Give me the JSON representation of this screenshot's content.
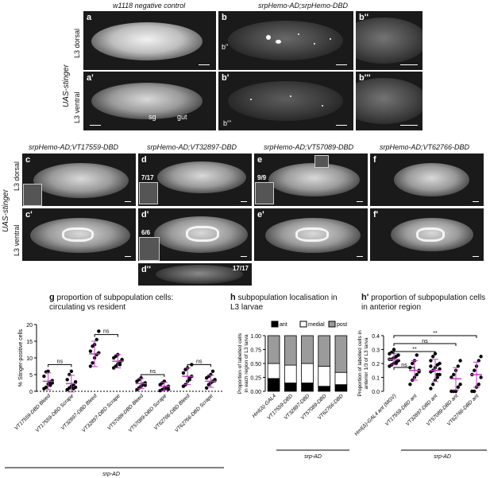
{
  "top": {
    "col_headers": [
      "w1118 negative control",
      "srpHemo-AD;srpHemo-DBD"
    ],
    "side_label": "UAS-stinger",
    "row_labels": [
      "L3 dorsal",
      "L3 ventral"
    ],
    "panel_labels": [
      "a",
      "b",
      "b''",
      "a'",
      "b'",
      "b'''"
    ],
    "annotations": {
      "sg": "sg",
      "gut": "gut",
      "b2": "b''",
      "b3": "b'''"
    }
  },
  "middle": {
    "col_headers": [
      "srpHemo-AD;VT17559-DBD",
      "srpHemo-AD;VT32897-DBD",
      "srpHemo-AD;VT57089-DBD",
      "srpHemo-AD;VT62766-DBD"
    ],
    "side_label": "UAS-stinger",
    "row_labels": [
      "L3 dorsal",
      "L3 ventral"
    ],
    "panel_labels": [
      "c",
      "d",
      "e",
      "f",
      "c'",
      "d'",
      "e'",
      "f'",
      "d''"
    ],
    "counts": [
      "7/17",
      "9/9",
      "6/6",
      "17/17"
    ]
  },
  "g": {
    "label": "g",
    "title": "proportion of subpopulation cells: circulating vs resident",
    "ylabel": "% Stinger-positive cells",
    "xgroup": "srp-AD",
    "ns": "ns"
  },
  "h": {
    "label": "h",
    "title": "subpopulation localisation in L3 larvae",
    "ylabel": "Proportion of labelled cells in each region of L3 larva",
    "xgroup": "srp-AD",
    "legend": [
      "ant",
      "medial",
      "post"
    ]
  },
  "h2": {
    "label": "h'",
    "title": "proportion of subpopulation cells in anterior region",
    "ylabel": "Proportion of labelled cells in anterior 1/3 of L3 larva",
    "xgroup": "srp-AD",
    "sig": [
      "ns",
      "**",
      "ns",
      "**"
    ]
  },
  "chart_data": [
    {
      "type": "scatter",
      "ylabel": "% Stinger-positive cells",
      "ylim": [
        0,
        20
      ],
      "yticks": [
        0,
        5,
        10,
        15,
        20
      ],
      "categories": [
        "VT17559-DBD Bleed",
        "VT17559-DBD Scrape",
        "VT32897-DBD Bleed",
        "VT32897-DBD Scrape",
        "VT57089-DBD Bleed",
        "VT57089-DBD Scrape",
        "VT62766-DBD Bleed",
        "VT62766-DBD Scrape"
      ],
      "means": [
        3.0,
        2.3,
        11.2,
        9.0,
        2.3,
        1.5,
        4.5,
        3.0
      ],
      "sd": [
        2.5,
        2.5,
        3.8,
        2.0,
        1.5,
        1.2,
        2.5,
        1.8
      ],
      "points": [
        [
          0.8,
          1.2,
          2.2,
          2.8,
          3.2,
          4.5,
          5.8,
          6.0,
          1.8,
          2.5
        ],
        [
          0.5,
          1.0,
          1.5,
          2.0,
          2.8,
          3.5,
          5.0,
          6.0,
          0.8,
          1.2
        ],
        [
          7.5,
          8.5,
          10,
          11,
          11.5,
          12,
          13.5,
          14,
          15.5,
          18
        ],
        [
          7,
          7.5,
          8.2,
          8.8,
          9.2,
          10,
          10.5,
          11,
          8,
          9.5
        ],
        [
          0.5,
          1.0,
          1.5,
          2.0,
          2.5,
          3.0,
          3.5,
          4.0,
          2.2,
          1.8
        ],
        [
          0.2,
          0.5,
          0.8,
          1.0,
          1.5,
          2.0,
          2.5,
          3.0,
          1.2,
          0.6
        ],
        [
          1.5,
          2.0,
          3.0,
          3.5,
          4.5,
          5.5,
          6.5,
          7.0,
          4.0,
          8.0
        ],
        [
          1.0,
          2.0,
          2.5,
          3.0,
          3.5,
          4.0,
          4.5,
          5.0,
          6.0,
          3.2
        ]
      ],
      "significance": [
        "ns",
        "ns",
        "ns",
        "ns"
      ]
    },
    {
      "type": "bar",
      "stacked": true,
      "ylabel": "Proportion of labelled cells in each region of L3 larva",
      "ylim": [
        0,
        1
      ],
      "yticks": [
        0.0,
        0.25,
        0.5,
        0.75,
        1.0
      ],
      "categories": [
        "Hml(Δ)-GAL4",
        "VT17559-DBD",
        "VT32897-DBD",
        "VT57089-DBD",
        "VT62766-DBD"
      ],
      "series": [
        {
          "name": "ant",
          "values": [
            0.23,
            0.15,
            0.15,
            0.09,
            0.12
          ]
        },
        {
          "name": "medial",
          "values": [
            0.27,
            0.32,
            0.35,
            0.36,
            0.22
          ]
        },
        {
          "name": "post",
          "values": [
            0.5,
            0.53,
            0.5,
            0.55,
            0.66
          ]
        }
      ]
    },
    {
      "type": "scatter",
      "ylabel": "Proportion of labelled cells in anterior 1/3 of L3 larva",
      "ylim": [
        0,
        0.4
      ],
      "yticks": [
        0.0,
        0.1,
        0.2,
        0.3,
        0.4
      ],
      "categories": [
        "Hml(Δ)-GAL4 ant (MGV)",
        "VT17559-DBD ant",
        "VT32897-DBD ant",
        "VT57089-DBD ant",
        "VT62766-DBD ant"
      ],
      "means": [
        0.23,
        0.15,
        0.15,
        0.09,
        0.12
      ],
      "sd": [
        0.04,
        0.07,
        0.08,
        0.08,
        0.09
      ],
      "points": [
        [
          0.18,
          0.19,
          0.2,
          0.21,
          0.22,
          0.23,
          0.23,
          0.24,
          0.25,
          0.26,
          0.27,
          0.28,
          0.3,
          0.2,
          0.22
        ],
        [
          0.05,
          0.08,
          0.1,
          0.12,
          0.15,
          0.17,
          0.2,
          0.22,
          0.26,
          0.14
        ],
        [
          0.02,
          0.05,
          0.08,
          0.1,
          0.12,
          0.14,
          0.15,
          0.17,
          0.19,
          0.2,
          0.22,
          0.25,
          0.27,
          0.12,
          0.16,
          0.18
        ],
        [
          0.0,
          0.0,
          0.0,
          0.03,
          0.05,
          0.1,
          0.12,
          0.15,
          0.18,
          0.22
        ],
        [
          0.0,
          0.0,
          0.03,
          0.05,
          0.1,
          0.12,
          0.15,
          0.18,
          0.22,
          0.25
        ]
      ],
      "significance": [
        "ns",
        "**",
        "ns",
        "**"
      ]
    }
  ]
}
